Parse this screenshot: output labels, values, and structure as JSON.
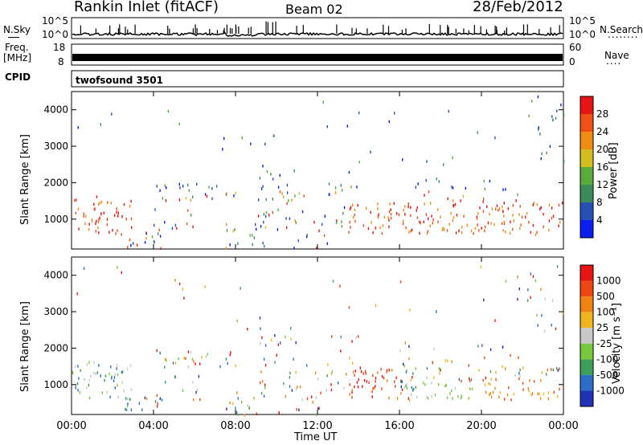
{
  "header": {
    "station": "Rankin Inlet (fitACF)",
    "beam": "Beam 02",
    "date": "28/Feb/2012"
  },
  "top_panels": {
    "nsky_label": "N.Sky",
    "nsky_ticks": [
      "10^5",
      "10^0"
    ],
    "nsearch_label": "N.Search",
    "nsearch_ticks": [
      "10^5",
      "10^0"
    ],
    "freq_label_1": "Freq.",
    "freq_label_2": "[MHz]",
    "freq_ticks": [
      "18",
      "8"
    ],
    "nave_label": "Nave",
    "nave_ticks": [
      "60",
      "0"
    ],
    "cpid_label": "CPID",
    "cpid_value": "twofsound 3501",
    "dots": "........",
    "dots_short": "...."
  },
  "chart_data": [
    {
      "type": "heatmap",
      "name": "power",
      "ylabel": "Slant Range [km]",
      "y_ticks": [
        "1000",
        "2000",
        "3000",
        "4000"
      ],
      "ylim": [
        180,
        4500
      ],
      "xlim": [
        0,
        24
      ],
      "colorbar_label": "Power [dB]",
      "colorbar_ticks": [
        "4",
        "8",
        "12",
        "16",
        "20",
        "24",
        "28"
      ],
      "colorbar_colors": [
        "#0a1ef0",
        "#2850b4",
        "#3c8c5a",
        "#5aaa3c",
        "#d2be1e",
        "#f08c14",
        "#f05014",
        "#e61414"
      ],
      "dominant_band_km": [
        600,
        1600
      ]
    },
    {
      "type": "heatmap",
      "name": "velocity",
      "ylabel": "Slant Range [km]",
      "y_ticks": [
        "1000",
        "2000",
        "3000",
        "4000"
      ],
      "ylim": [
        180,
        4500
      ],
      "xlim": [
        0,
        24
      ],
      "colorbar_label": "Velocity [m s⁻¹]",
      "colorbar_ticks": [
        "1000",
        "500",
        "100",
        "25",
        "-25",
        "-100",
        "-500",
        "-1000"
      ],
      "colorbar_colors": [
        "#1e32b4",
        "#2d6ec8",
        "#3ca05a",
        "#78c83c",
        "#c8c8c8",
        "#f0b41e",
        "#f08214",
        "#f04614",
        "#e61414"
      ],
      "xlabel": "Time UT",
      "x_ticks": [
        "00:00",
        "04:00",
        "08:00",
        "12:00",
        "16:00",
        "20:00",
        "00:00"
      ]
    }
  ]
}
